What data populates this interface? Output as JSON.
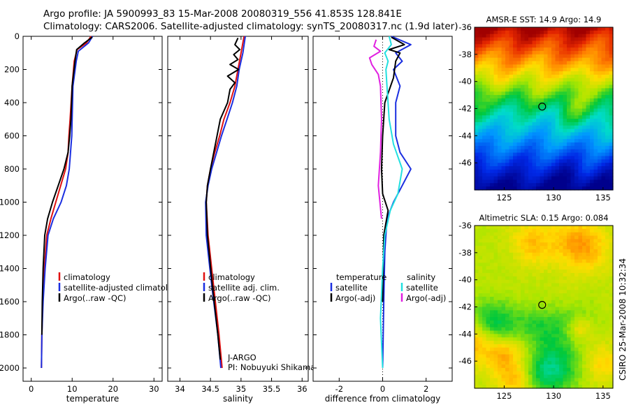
{
  "header": {
    "title_line1": "Argo profile: JA 5900993_83 15-Mar-2008 20080319_556 41.853S 128.841E",
    "title_line2": "Climatology: CARS2006. Satellite-adjusted climatology: synTS_20080317.nc (1.9d later)"
  },
  "side_label": "CSIRO 25-Mar-2008 10:32:34",
  "colors": {
    "red": "#e01010",
    "blue": "#1a2ee0",
    "black": "#000000",
    "cyan": "#22e0e0",
    "magenta": "#e020e0"
  },
  "chart_data": [
    {
      "type": "line",
      "id": "temperature",
      "title": "",
      "xlabel": "temperature",
      "ylabel": "",
      "xlim": [
        -2,
        32
      ],
      "ylim": [
        0,
        2080
      ],
      "y_reversed": true,
      "xticks": [
        0,
        10,
        20,
        30
      ],
      "yticks": [
        0,
        200,
        400,
        600,
        800,
        1000,
        1200,
        1400,
        1600,
        1800,
        2000
      ],
      "legend": [
        "climatology",
        "satellite-adjusted climatology",
        "Argo(..raw -QC)"
      ],
      "legend_colors": [
        "red",
        "blue",
        "black"
      ],
      "series": [
        {
          "name": "climatology",
          "color": "red",
          "x": [
            14.6,
            13.5,
            11.2,
            10.5,
            10.0,
            9.5,
            9.2,
            9.0,
            8.4,
            7.2,
            6.0,
            4.8,
            3.8,
            3.2,
            2.8,
            2.6,
            2.5
          ],
          "y": [
            0,
            40,
            80,
            150,
            300,
            500,
            600,
            700,
            800,
            900,
            1000,
            1100,
            1200,
            1400,
            1600,
            1800,
            2000
          ]
        },
        {
          "name": "satellite-adjusted climatology",
          "color": "blue",
          "x": [
            15.0,
            14.0,
            11.5,
            11.0,
            10.2,
            10.0,
            9.9,
            9.6,
            9.3,
            8.6,
            7.3,
            5.4,
            4.1,
            3.4,
            2.9,
            2.6,
            2.5
          ],
          "y": [
            0,
            40,
            90,
            150,
            300,
            500,
            600,
            700,
            800,
            900,
            1000,
            1100,
            1200,
            1400,
            1600,
            1800,
            2000
          ]
        },
        {
          "name": "Argo(..raw -QC)",
          "color": "black",
          "x": [
            14.9,
            13.0,
            11.1,
            10.7,
            10.0,
            9.7,
            9.4,
            9.0,
            8.0,
            6.6,
            5.2,
            4.0,
            3.3,
            2.9,
            2.7,
            2.6
          ],
          "y": [
            5,
            40,
            80,
            150,
            300,
            500,
            600,
            700,
            800,
            900,
            1000,
            1100,
            1200,
            1400,
            1600,
            1800
          ]
        }
      ]
    },
    {
      "type": "line",
      "id": "salinity",
      "title": "",
      "xlabel": "salinity",
      "ylabel": "",
      "xlim": [
        33.8,
        36.1
      ],
      "ylim": [
        0,
        2080
      ],
      "y_reversed": true,
      "xticks": [
        34,
        34.5,
        35,
        35.5,
        36
      ],
      "xtick_labels": [
        "34",
        "34.5",
        "35",
        "35.5",
        "36"
      ],
      "legend": [
        "climatology",
        "satellite adj. clim.",
        "Argo(..raw -QC)"
      ],
      "legend_colors": [
        "red",
        "blue",
        "black"
      ],
      "annotation": [
        "J-ARGO",
        "PI: Nobuyuki Shikama"
      ],
      "series": [
        {
          "name": "climatology",
          "color": "red",
          "x": [
            35.05,
            35.0,
            34.95,
            34.9,
            34.82,
            34.72,
            34.65,
            34.57,
            34.5,
            34.45,
            34.43,
            34.46,
            34.55,
            34.64,
            34.69
          ],
          "y": [
            0,
            100,
            200,
            300,
            400,
            500,
            600,
            700,
            800,
            900,
            1000,
            1200,
            1500,
            1800,
            2000
          ]
        },
        {
          "name": "satellite adj. clim.",
          "color": "blue",
          "x": [
            35.07,
            35.03,
            34.97,
            34.93,
            34.86,
            34.77,
            34.68,
            34.6,
            34.52,
            34.46,
            34.42,
            34.43,
            34.52,
            34.62,
            34.67
          ],
          "y": [
            0,
            100,
            200,
            300,
            400,
            500,
            600,
            700,
            800,
            900,
            1000,
            1200,
            1500,
            1800,
            2000
          ]
        },
        {
          "name": "Argo(..raw -QC)",
          "color": "black",
          "x": [
            34.95,
            34.9,
            34.98,
            34.88,
            34.95,
            34.82,
            34.96,
            34.78,
            34.9,
            34.82,
            34.78,
            34.66,
            34.58,
            34.5,
            34.45,
            34.43,
            34.45,
            34.53,
            34.62,
            34.66
          ],
          "y": [
            10,
            50,
            80,
            110,
            140,
            170,
            200,
            240,
            280,
            320,
            400,
            500,
            650,
            800,
            900,
            1000,
            1200,
            1500,
            1800,
            1950
          ]
        }
      ]
    },
    {
      "type": "line",
      "id": "difference",
      "title": "",
      "xlabel": "difference from climatology",
      "ylabel": "",
      "xlim": [
        -3.2,
        3.2
      ],
      "ylim": [
        0,
        2080
      ],
      "y_reversed": true,
      "xticks": [
        -2,
        0,
        2
      ],
      "legend_temperature_header": "temperature",
      "legend_salinity_header": "salinity",
      "legend": [
        "satellite",
        "Argo(-adj)",
        "satellite",
        "Argo(-adj)"
      ],
      "legend_colors": [
        "blue",
        "black",
        "cyan",
        "magenta"
      ],
      "series": [
        {
          "name": "temperature satellite",
          "color": "blue",
          "x": [
            0.4,
            1.3,
            0.6,
            0.9,
            0.5,
            0.8,
            0.6,
            0.6,
            0.6,
            0.8,
            1.3,
            0.9,
            0.5,
            0.2,
            0.1,
            0.05,
            0.0
          ],
          "y": [
            0,
            50,
            100,
            150,
            200,
            300,
            400,
            500,
            600,
            700,
            800,
            900,
            1000,
            1100,
            1300,
            1600,
            2000
          ]
        },
        {
          "name": "temperature Argo(-adj)",
          "color": "black",
          "x": [
            0.4,
            1.0,
            0.3,
            0.8,
            0.6,
            0.5,
            0.1,
            0.0,
            -0.05,
            0.0,
            0.25,
            0.05,
            0.0
          ],
          "y": [
            5,
            50,
            80,
            100,
            150,
            250,
            400,
            600,
            800,
            950,
            1050,
            1200,
            1600
          ]
        },
        {
          "name": "salinity satellite",
          "color": "cyan",
          "x": [
            0.3,
            0.4,
            0.1,
            0.25,
            0.15,
            0.2,
            0.3,
            0.5,
            0.9,
            0.7,
            0.35,
            0.1,
            0.0,
            -0.1,
            0.0
          ],
          "y": [
            0,
            50,
            100,
            150,
            200,
            300,
            500,
            650,
            800,
            950,
            1050,
            1200,
            1400,
            1700,
            2000
          ]
        },
        {
          "name": "salinity Argo(-adj)",
          "color": "magenta",
          "x": [
            -0.3,
            -0.4,
            -0.1,
            -0.6,
            -0.5,
            -0.2,
            -0.1,
            -0.05,
            -0.1,
            -0.2,
            -0.05
          ],
          "y": [
            20,
            60,
            90,
            130,
            170,
            230,
            300,
            500,
            700,
            900,
            1100
          ]
        }
      ]
    },
    {
      "type": "heatmap",
      "id": "sst_map",
      "title": "AMSR-E SST: 14.9 Argo: 14.9",
      "xticks": [
        125,
        130,
        135
      ],
      "yticks": [
        -36,
        -38,
        -40,
        -42,
        -44,
        -46
      ],
      "xlim": [
        122,
        136
      ],
      "ylim": [
        -48,
        -36
      ],
      "marker": {
        "lon": 128.841,
        "lat": -41.853
      }
    },
    {
      "type": "heatmap",
      "id": "sla_map",
      "title": "Altimetric SLA: 0.15 Argo: 0.084",
      "xticks": [
        125,
        130,
        135
      ],
      "yticks": [
        -36,
        -38,
        -40,
        -42,
        -44,
        -46
      ],
      "xlim": [
        122,
        136
      ],
      "ylim": [
        -48,
        -36
      ],
      "marker": {
        "lon": 128.841,
        "lat": -41.853
      }
    }
  ]
}
